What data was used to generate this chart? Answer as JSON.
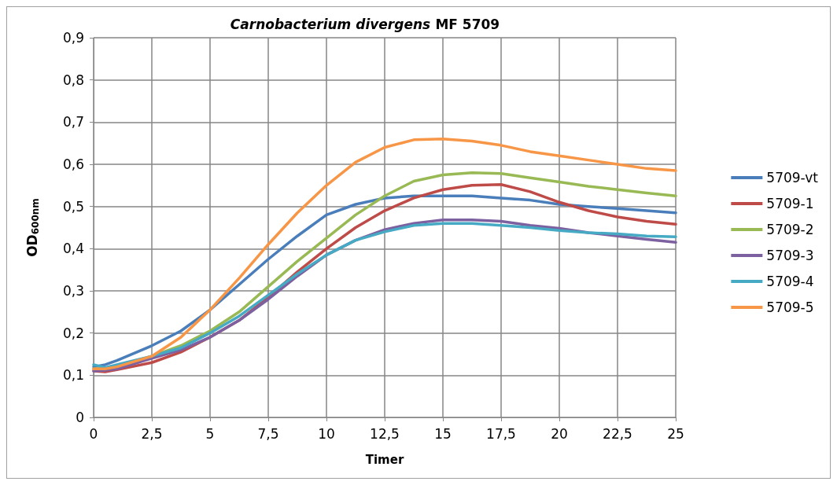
{
  "chart_data": {
    "type": "line",
    "title": "Carnobacterium divergens MF 5709",
    "xlabel": "Timer",
    "ylabel": "OD$_{600nm}$",
    "x": [
      0,
      0.5,
      1,
      2.5,
      3.75,
      5,
      6.25,
      7.5,
      8.75,
      10,
      11.25,
      12.5,
      13.75,
      15,
      16.25,
      17.5,
      18.75,
      20,
      21.25,
      22.5,
      23.75,
      25
    ],
    "series": [
      {
        "name": "5709-vt",
        "color": "#4a7ebb",
        "values": [
          0.12,
          0.125,
          0.135,
          0.17,
          0.205,
          0.255,
          0.315,
          0.375,
          0.43,
          0.48,
          0.505,
          0.52,
          0.525,
          0.525,
          0.525,
          0.52,
          0.515,
          0.505,
          0.5,
          0.495,
          0.49,
          0.485
        ]
      },
      {
        "name": "5709-1",
        "color": "#be4b48",
        "values": [
          0.11,
          0.108,
          0.113,
          0.13,
          0.155,
          0.19,
          0.23,
          0.285,
          0.345,
          0.4,
          0.45,
          0.49,
          0.52,
          0.54,
          0.55,
          0.552,
          0.535,
          0.51,
          0.49,
          0.475,
          0.465,
          0.458
        ]
      },
      {
        "name": "5709-2",
        "color": "#98b954",
        "values": [
          0.115,
          0.117,
          0.12,
          0.145,
          0.17,
          0.205,
          0.25,
          0.31,
          0.37,
          0.425,
          0.48,
          0.525,
          0.56,
          0.575,
          0.58,
          0.578,
          0.568,
          0.558,
          0.548,
          0.54,
          0.532,
          0.525
        ]
      },
      {
        "name": "5709-3",
        "color": "#7d60a0",
        "values": [
          0.11,
          0.112,
          0.115,
          0.14,
          0.16,
          0.19,
          0.23,
          0.28,
          0.335,
          0.385,
          0.42,
          0.445,
          0.46,
          0.468,
          0.468,
          0.465,
          0.455,
          0.448,
          0.438,
          0.43,
          0.422,
          0.415
        ]
      },
      {
        "name": "5709-4",
        "color": "#46aac5",
        "values": [
          0.125,
          0.118,
          0.125,
          0.145,
          0.165,
          0.2,
          0.24,
          0.29,
          0.34,
          0.385,
          0.42,
          0.44,
          0.455,
          0.46,
          0.46,
          0.455,
          0.45,
          0.443,
          0.438,
          0.435,
          0.43,
          0.428
        ]
      },
      {
        "name": "5709-5",
        "color": "#f79646",
        "values": [
          0.115,
          0.115,
          0.12,
          0.145,
          0.19,
          0.255,
          0.33,
          0.41,
          0.485,
          0.55,
          0.605,
          0.64,
          0.658,
          0.66,
          0.655,
          0.645,
          0.63,
          0.62,
          0.61,
          0.6,
          0.59,
          0.585
        ]
      }
    ],
    "xlim": [
      0,
      25
    ],
    "xticks": [
      0,
      {
        "value": 2.5,
        "label": "2,5"
      },
      5,
      {
        "value": 7.5,
        "label": "7,5"
      },
      10,
      {
        "value": 12.5,
        "label": "12,5"
      },
      15,
      {
        "value": 17.5,
        "label": "17,5"
      },
      20,
      {
        "value": 22.5,
        "label": "22,5"
      },
      25
    ],
    "ylim": [
      0,
      0.9
    ],
    "yticks": [
      0,
      {
        "value": 0.1,
        "label": "0,1"
      },
      {
        "value": 0.2,
        "label": "0,2"
      },
      {
        "value": 0.3,
        "label": "0,3"
      },
      {
        "value": 0.4,
        "label": "0,4"
      },
      {
        "value": 0.5,
        "label": "0,5"
      },
      {
        "value": 0.6,
        "label": "0,6"
      },
      {
        "value": 0.7,
        "label": "0,7"
      },
      {
        "value": 0.8,
        "label": "0,8"
      },
      {
        "value": 0.9,
        "label": "0,9"
      }
    ],
    "grid": true,
    "legend": "right",
    "marker": "none",
    "line_style": "solid"
  }
}
